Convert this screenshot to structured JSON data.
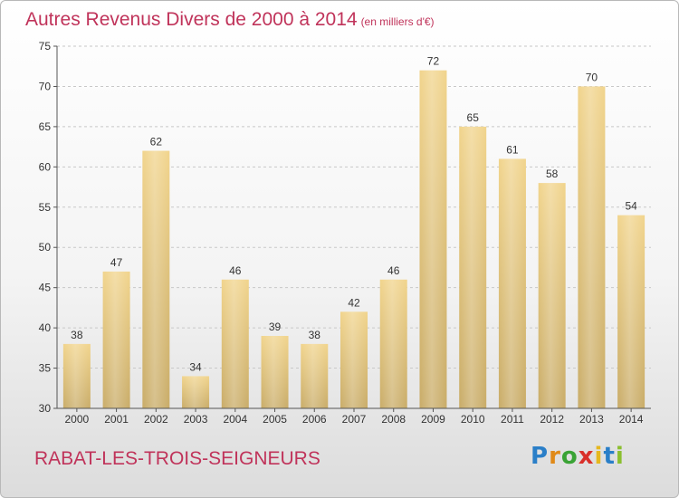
{
  "chart_data": {
    "type": "bar",
    "title": "Autres Revenus Divers de 2000 à 2014",
    "subtitle": "(en milliers d'€)",
    "categories": [
      "2000",
      "2001",
      "2002",
      "2003",
      "2004",
      "2005",
      "2006",
      "2007",
      "2008",
      "2009",
      "2010",
      "2011",
      "2012",
      "2013",
      "2014"
    ],
    "values": [
      38,
      47,
      62,
      34,
      46,
      39,
      38,
      42,
      46,
      72,
      65,
      61,
      58,
      70,
      54
    ],
    "xlabel": "",
    "ylabel": "",
    "ylim": [
      30,
      75
    ],
    "yticks": [
      30,
      35,
      40,
      45,
      50,
      55,
      60,
      65,
      70,
      75
    ],
    "grid": true,
    "data_labels": true,
    "bar_color": "#f1d48c",
    "bar_color_dark": "#c9ac68",
    "grid_color": "#c8c8c8"
  },
  "footer": {
    "town": "RABAT-LES-TROIS-SEIGNEURS",
    "logo_letters": [
      "P",
      "r",
      "o",
      "x",
      "i",
      "t",
      "i"
    ]
  },
  "colors": {
    "title": "#c0335a"
  }
}
